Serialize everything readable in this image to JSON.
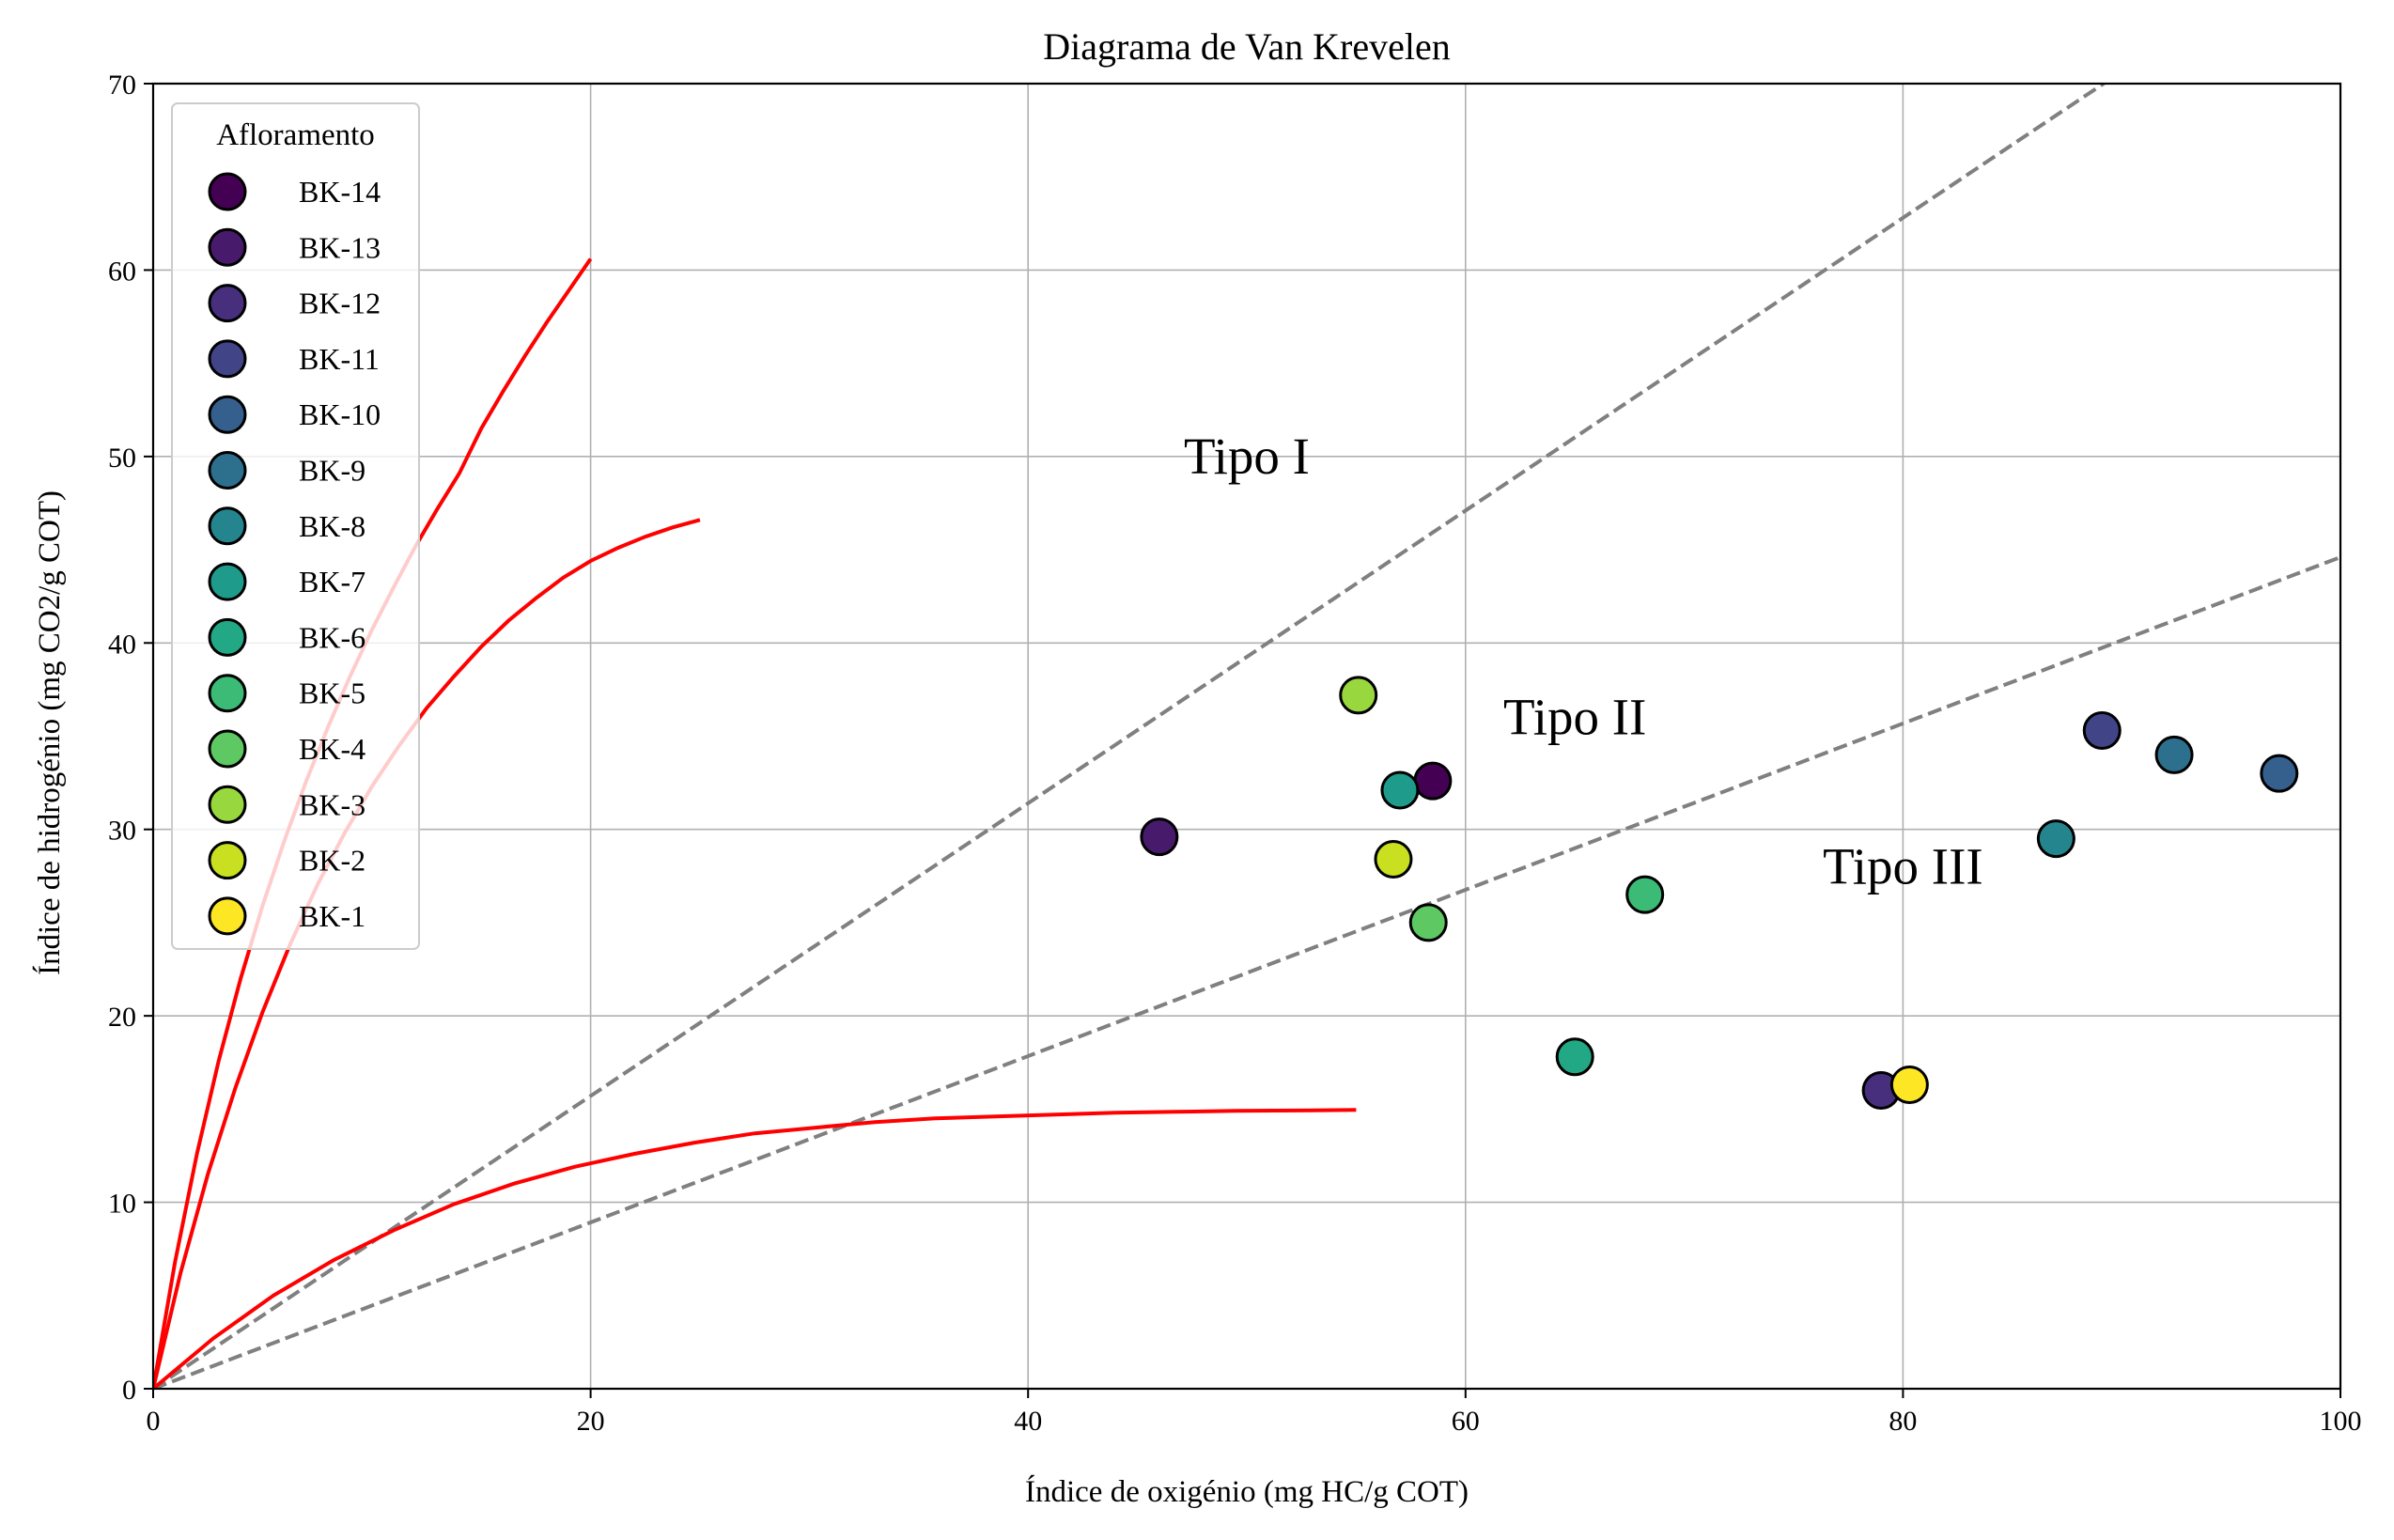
{
  "chart_data": {
    "type": "scatter",
    "title": "Diagrama de Van Krevelen",
    "xlabel": "Índice de oxigénio (mg HC/g COT)",
    "ylabel": "Índice de hidrogénio (mg CO2/g COT)",
    "xlim": [
      0,
      100
    ],
    "ylim": [
      0,
      70
    ],
    "xticks": [
      0,
      20,
      40,
      60,
      80,
      100
    ],
    "yticks": [
      0,
      10,
      20,
      30,
      40,
      50,
      60,
      70
    ],
    "grid": true,
    "legend": {
      "title": "Afloramento",
      "placement": "top-left"
    },
    "series": [
      {
        "name": "BK-14",
        "color": "#440154",
        "x": [
          58.5
        ],
        "y": [
          32.6
        ]
      },
      {
        "name": "BK-13",
        "color": "#481a6c",
        "x": [
          46.0
        ],
        "y": [
          29.6
        ]
      },
      {
        "name": "BK-12",
        "color": "#472f7d",
        "x": [
          79.0
        ],
        "y": [
          16.0
        ]
      },
      {
        "name": "BK-11",
        "color": "#414487",
        "x": [
          89.1
        ],
        "y": [
          35.3
        ]
      },
      {
        "name": "BK-10",
        "color": "#35608d",
        "x": [
          97.2
        ],
        "y": [
          33.0
        ]
      },
      {
        "name": "BK-9",
        "color": "#2d708e",
        "x": [
          92.4
        ],
        "y": [
          34.0
        ]
      },
      {
        "name": "BK-8",
        "color": "#25858e",
        "x": [
          87.0
        ],
        "y": [
          29.5
        ]
      },
      {
        "name": "BK-7",
        "color": "#1e9b8a",
        "x": [
          57.0
        ],
        "y": [
          32.1
        ]
      },
      {
        "name": "BK-6",
        "color": "#22a884",
        "x": [
          65.0
        ],
        "y": [
          17.8
        ]
      },
      {
        "name": "BK-5",
        "color": "#3bbb75",
        "x": [
          68.2
        ],
        "y": [
          26.5
        ]
      },
      {
        "name": "BK-4",
        "color": "#5ec962",
        "x": [
          58.3
        ],
        "y": [
          25.0
        ]
      },
      {
        "name": "BK-3",
        "color": "#98d83e",
        "x": [
          55.1
        ],
        "y": [
          37.2
        ]
      },
      {
        "name": "BK-2",
        "color": "#c8e020",
        "x": [
          56.7
        ],
        "y": [
          28.4
        ]
      },
      {
        "name": "BK-1",
        "color": "#fde725",
        "x": [
          80.3
        ],
        "y": [
          16.3
        ]
      }
    ],
    "reference_lines": [
      {
        "style": "dashed",
        "color": "#808080",
        "x": [
          0,
          100
        ],
        "y": [
          0,
          78.5
        ]
      },
      {
        "style": "dashed",
        "color": "#808080",
        "x": [
          0,
          100
        ],
        "y": [
          0,
          44.6
        ]
      }
    ],
    "curves": [
      {
        "color": "#ff0000",
        "x": [
          0,
          1,
          2,
          3,
          4,
          5,
          6,
          7,
          8,
          9,
          10,
          11,
          12,
          13,
          14,
          15,
          16,
          17,
          18,
          19,
          20
        ],
        "y": [
          0,
          6.8,
          12.6,
          17.6,
          22.0,
          25.9,
          29.4,
          32.6,
          35.5,
          38.2,
          40.7,
          43.0,
          45.2,
          47.2,
          49.1,
          51.5,
          53.5,
          55.4,
          57.2,
          58.9,
          60.6
        ]
      },
      {
        "color": "#ff0000",
        "x": [
          0,
          1.25,
          2.5,
          3.75,
          5,
          6.25,
          7.5,
          8.75,
          10,
          11.25,
          12.5,
          13.75,
          15,
          16.25,
          17.5,
          18.75,
          20,
          21.25,
          22.5,
          23.75,
          25
        ],
        "y": [
          0,
          6.2,
          11.5,
          16.1,
          20.2,
          23.8,
          27.0,
          29.8,
          32.3,
          34.5,
          36.5,
          38.2,
          39.8,
          41.2,
          42.4,
          43.5,
          44.4,
          45.1,
          45.7,
          46.2,
          46.6
        ]
      },
      {
        "color": "#ff0000",
        "x": [
          0,
          2.75,
          5.5,
          8.25,
          11,
          13.75,
          16.5,
          19.25,
          22,
          24.75,
          27.5,
          30.25,
          33,
          35.75,
          38.5,
          41.25,
          44,
          46.75,
          49.5,
          52.25,
          55
        ],
        "y": [
          0,
          2.7,
          5.0,
          6.9,
          8.5,
          9.9,
          11.0,
          11.9,
          12.6,
          13.2,
          13.7,
          14.0,
          14.3,
          14.5,
          14.6,
          14.7,
          14.8,
          14.85,
          14.9,
          14.92,
          14.95
        ]
      }
    ],
    "annotations": [
      {
        "text": "Tipo I",
        "x": 50.0,
        "y": 50.0
      },
      {
        "text": "Tipo II",
        "x": 65.0,
        "y": 36.0
      },
      {
        "text": "Tipo III",
        "x": 80.0,
        "y": 28.0
      }
    ]
  }
}
